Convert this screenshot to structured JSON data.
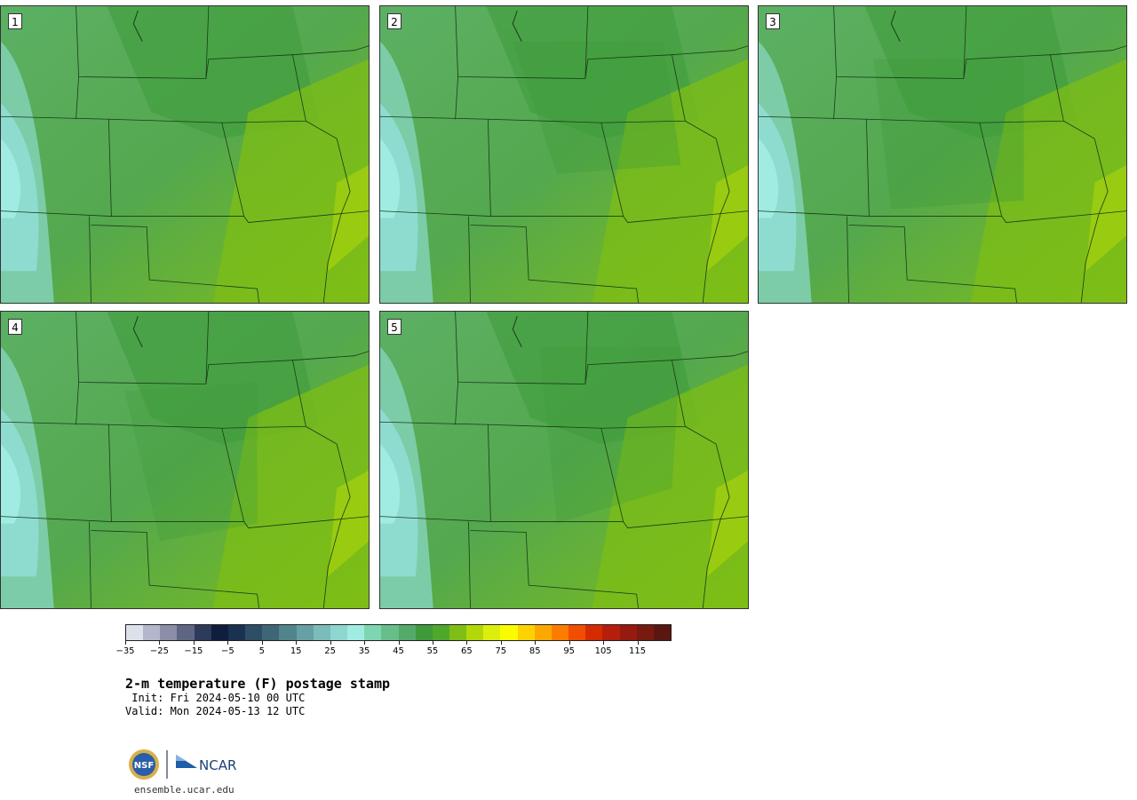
{
  "panels": [
    {
      "label": "1"
    },
    {
      "label": "2"
    },
    {
      "label": "3"
    },
    {
      "label": "4"
    },
    {
      "label": "5"
    }
  ],
  "colorbar": {
    "colors": [
      "#dde1ea",
      "#b4b7cc",
      "#8c8ea8",
      "#5f6684",
      "#2e3a5a",
      "#0f1e3c",
      "#1a3150",
      "#2e4e66",
      "#3e6676",
      "#52848c",
      "#66a0a4",
      "#7abcba",
      "#8ed6d0",
      "#a0ece2",
      "#7ed6b0",
      "#66be8a",
      "#54aa68",
      "#3e9a3a",
      "#4ea82a",
      "#7ebe16",
      "#b2d80a",
      "#dcee0e",
      "#fafc00",
      "#fcd200",
      "#fca800",
      "#fc7c00",
      "#f04e00",
      "#d42c00",
      "#b41e0a",
      "#961a0e",
      "#781a10",
      "#5a1610"
    ],
    "tick_labels": [
      "−35",
      "−25",
      "−15",
      "−5",
      "5",
      "15",
      "25",
      "35",
      "45",
      "55",
      "65",
      "75",
      "85",
      "95",
      "105",
      "115"
    ]
  },
  "title": "2-m temperature (F) postage stamp",
  "init": " Init: Fri 2024-05-10 00 UTC",
  "valid": "Valid: Mon 2024-05-13 12 UTC",
  "logos": {
    "nsf": "NSF",
    "ncar": "NCAR"
  },
  "site": "ensemble.ucar.edu"
}
